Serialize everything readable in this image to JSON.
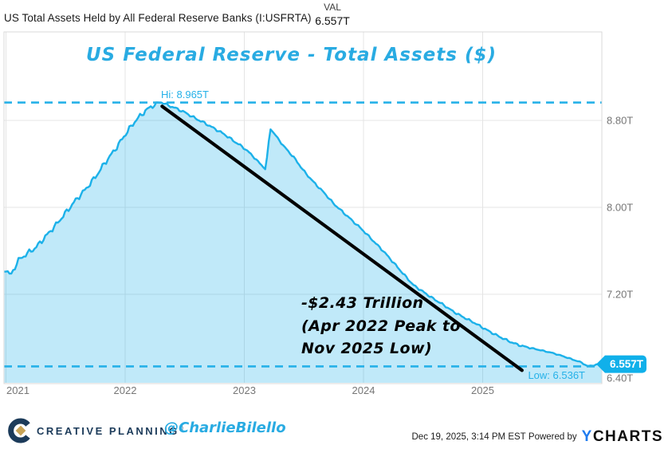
{
  "header": {
    "title": "US Total Assets Held by All Federal Reserve Banks (I:USFRTA)",
    "val_label": "VAL",
    "val_value": "6.557T"
  },
  "chart_data": {
    "type": "area",
    "title": "US Federal Reserve - Total Assets ($)",
    "unit": "trillions of dollars",
    "x_range": [
      2021,
      2026
    ],
    "x_ticks": [
      "2021",
      "2022",
      "2023",
      "2024",
      "2025"
    ],
    "y_ticks": [
      {
        "label": "8.80T",
        "v": 8.8
      },
      {
        "label": "8.00T",
        "v": 8.0
      },
      {
        "label": "7.20T",
        "v": 7.2
      },
      {
        "label": "6.40T",
        "v": 6.4
      }
    ],
    "hi": {
      "label": "Hi: 8.965T",
      "value": 8.965
    },
    "low": {
      "label": "Low: 6.536T",
      "value": 6.536
    },
    "last": {
      "label": "6.557T",
      "value": 6.557
    },
    "trend_line": {
      "from_t": 2022.31,
      "from_v": 8.93,
      "to_t": 2025.33,
      "to_v": 6.5
    },
    "annotation_lines": [
      "-$2.43 Trillion",
      "(Apr 2022 Peak to",
      "Nov 2025 Low)"
    ],
    "series": [
      {
        "name": "US Total Assets Held by All Federal Reserve Banks",
        "points": [
          [
            2021.0,
            7.42
          ],
          [
            2021.04,
            7.36
          ],
          [
            2021.1,
            7.5
          ],
          [
            2021.17,
            7.56
          ],
          [
            2021.25,
            7.62
          ],
          [
            2021.33,
            7.72
          ],
          [
            2021.42,
            7.83
          ],
          [
            2021.5,
            7.94
          ],
          [
            2021.58,
            8.05
          ],
          [
            2021.67,
            8.16
          ],
          [
            2021.75,
            8.27
          ],
          [
            2021.83,
            8.4
          ],
          [
            2021.92,
            8.53
          ],
          [
            2022.0,
            8.66
          ],
          [
            2022.08,
            8.78
          ],
          [
            2022.17,
            8.88
          ],
          [
            2022.25,
            8.94
          ],
          [
            2022.3,
            8.965
          ],
          [
            2022.37,
            8.93
          ],
          [
            2022.42,
            8.91
          ],
          [
            2022.5,
            8.87
          ],
          [
            2022.58,
            8.82
          ],
          [
            2022.67,
            8.77
          ],
          [
            2022.75,
            8.72
          ],
          [
            2022.83,
            8.67
          ],
          [
            2022.92,
            8.6
          ],
          [
            2023.0,
            8.54
          ],
          [
            2023.08,
            8.46
          ],
          [
            2023.15,
            8.38
          ],
          [
            2023.18,
            8.345
          ],
          [
            2023.2,
            8.56
          ],
          [
            2023.22,
            8.72
          ],
          [
            2023.27,
            8.65
          ],
          [
            2023.33,
            8.56
          ],
          [
            2023.42,
            8.45
          ],
          [
            2023.5,
            8.33
          ],
          [
            2023.58,
            8.23
          ],
          [
            2023.67,
            8.13
          ],
          [
            2023.75,
            8.03
          ],
          [
            2023.83,
            7.95
          ],
          [
            2023.92,
            7.86
          ],
          [
            2024.0,
            7.78
          ],
          [
            2024.08,
            7.69
          ],
          [
            2024.17,
            7.59
          ],
          [
            2024.25,
            7.49
          ],
          [
            2024.33,
            7.39
          ],
          [
            2024.42,
            7.28
          ],
          [
            2024.5,
            7.22
          ],
          [
            2024.58,
            7.16
          ],
          [
            2024.67,
            7.1
          ],
          [
            2024.75,
            7.04
          ],
          [
            2024.83,
            6.99
          ],
          [
            2024.92,
            6.94
          ],
          [
            2025.0,
            6.89
          ],
          [
            2025.08,
            6.84
          ],
          [
            2025.17,
            6.79
          ],
          [
            2025.25,
            6.75
          ],
          [
            2025.33,
            6.72
          ],
          [
            2025.42,
            6.7
          ],
          [
            2025.5,
            6.68
          ],
          [
            2025.58,
            6.66
          ],
          [
            2025.67,
            6.63
          ],
          [
            2025.75,
            6.6
          ],
          [
            2025.83,
            6.57
          ],
          [
            2025.88,
            6.536
          ],
          [
            2025.93,
            6.545
          ],
          [
            2025.99,
            6.557
          ]
        ]
      }
    ],
    "colors": {
      "line": "#1cb1e9",
      "fill": "rgba(30,177,234,0.28)",
      "dashed": "#25b1e8",
      "trend": "#000000",
      "badge_bg": "#10b0ea",
      "badge_text": "#ffffff",
      "grid": "#e4e4e4",
      "border": "#d9d9d9",
      "axis_text": "#767676",
      "accent": "#29abe2"
    },
    "legend_position": "none",
    "grid": true
  },
  "footer": {
    "brand": "CREATIVE PLANNING",
    "brand_mark": "®",
    "handle": "@CharlieBilello",
    "timestamp": "Dec 19, 2025, 3:14 PM EST",
    "powered_by": "Powered by",
    "ycharts_y": "Y",
    "ycharts_rest": "CHARTS"
  }
}
